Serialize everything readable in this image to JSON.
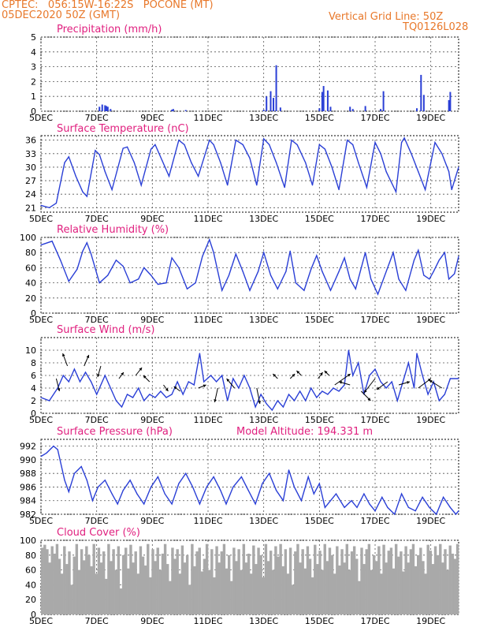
{
  "header": {
    "line1": "CPTEC:   056:15W-16:22S   POCONE (MT)",
    "line2": "05DEC2020 50Z (GMT)",
    "grid_note": "Vertical Grid Line: 50Z",
    "code": "TQ0126L028"
  },
  "colors": {
    "header": "#e8782a",
    "title": "#e0207f",
    "series": "#2a3fd6",
    "cloud": "#a9a9a9",
    "wind_vector": "#000000"
  },
  "x_ticks": [
    "5DEC",
    "7DEC",
    "9DEC",
    "11DEC",
    "13DEC",
    "15DEC",
    "17DEC",
    "19DEC"
  ],
  "chart_data": [
    {
      "id": "precip",
      "type": "bar",
      "title": "Precipitation (mm/h)",
      "ylim": [
        0,
        5
      ],
      "yticks": [
        "0",
        "1",
        "2",
        "3",
        "4",
        "5"
      ],
      "x_unit": "days since 5DEC 00Z",
      "xlim": [
        0,
        15
      ],
      "bars": [
        [
          2.1,
          0.3
        ],
        [
          2.2,
          0.45
        ],
        [
          2.3,
          0.4
        ],
        [
          2.35,
          0.35
        ],
        [
          2.4,
          0.3
        ],
        [
          2.5,
          0.15
        ],
        [
          4.7,
          0.1
        ],
        [
          4.75,
          0.15
        ],
        [
          5.2,
          0.08
        ],
        [
          8.0,
          0.1
        ],
        [
          8.1,
          1.0
        ],
        [
          8.25,
          1.35
        ],
        [
          8.35,
          0.9
        ],
        [
          8.45,
          3.1
        ],
        [
          8.6,
          0.25
        ],
        [
          10.0,
          0.2
        ],
        [
          10.1,
          1.3
        ],
        [
          10.15,
          1.7
        ],
        [
          10.3,
          1.4
        ],
        [
          10.4,
          0.3
        ],
        [
          11.1,
          0.3
        ],
        [
          11.2,
          0.15
        ],
        [
          11.65,
          0.35
        ],
        [
          12.2,
          0.15
        ],
        [
          12.3,
          1.35
        ],
        [
          13.5,
          0.2
        ],
        [
          13.65,
          2.45
        ],
        [
          13.75,
          1.1
        ],
        [
          14.65,
          0.75
        ],
        [
          14.7,
          1.3
        ]
      ]
    },
    {
      "id": "temp",
      "type": "line",
      "title": "Surface Temperature (nC)",
      "ylim": [
        20,
        37
      ],
      "yticks": [
        "21",
        "24",
        "27",
        "30",
        "33",
        "36"
      ],
      "x_unit": "days since 5DEC 00Z",
      "xlim": [
        0,
        15
      ],
      "points": [
        [
          0,
          21.5
        ],
        [
          0.3,
          21
        ],
        [
          0.55,
          22
        ],
        [
          0.85,
          31
        ],
        [
          1.0,
          32.3
        ],
        [
          1.25,
          28
        ],
        [
          1.5,
          24.5
        ],
        [
          1.65,
          23.5
        ],
        [
          1.95,
          33.7
        ],
        [
          2.1,
          32.8
        ],
        [
          2.3,
          29
        ],
        [
          2.55,
          25
        ],
        [
          2.95,
          34.2
        ],
        [
          3.1,
          34.5
        ],
        [
          3.35,
          31
        ],
        [
          3.6,
          26
        ],
        [
          3.95,
          34
        ],
        [
          4.1,
          35
        ],
        [
          4.35,
          31.5
        ],
        [
          4.6,
          28
        ],
        [
          4.95,
          36
        ],
        [
          5.15,
          35
        ],
        [
          5.4,
          31
        ],
        [
          5.65,
          28
        ],
        [
          6.05,
          36
        ],
        [
          6.2,
          35
        ],
        [
          6.45,
          31
        ],
        [
          6.7,
          26
        ],
        [
          7.0,
          36
        ],
        [
          7.25,
          35
        ],
        [
          7.5,
          32
        ],
        [
          7.75,
          26
        ],
        [
          8.0,
          36.3
        ],
        [
          8.2,
          35
        ],
        [
          8.45,
          31
        ],
        [
          8.75,
          25.5
        ],
        [
          9.0,
          36
        ],
        [
          9.2,
          35
        ],
        [
          9.5,
          31
        ],
        [
          9.75,
          26
        ],
        [
          10.0,
          35
        ],
        [
          10.2,
          34
        ],
        [
          10.45,
          30
        ],
        [
          10.7,
          25
        ],
        [
          11.0,
          36
        ],
        [
          11.2,
          35
        ],
        [
          11.4,
          31
        ],
        [
          11.7,
          25.5
        ],
        [
          12.0,
          35.5
        ],
        [
          12.2,
          33
        ],
        [
          12.4,
          29
        ],
        [
          12.75,
          24.5
        ],
        [
          12.95,
          35.5
        ],
        [
          13.05,
          36.5
        ],
        [
          13.3,
          33
        ],
        [
          13.55,
          29
        ],
        [
          13.8,
          25
        ],
        [
          14.0,
          31
        ],
        [
          14.15,
          35.5
        ],
        [
          14.4,
          33
        ],
        [
          14.65,
          29
        ],
        [
          14.75,
          25
        ],
        [
          15.0,
          30
        ]
      ]
    },
    {
      "id": "rh",
      "type": "line",
      "title": "Relative Humidity (%)",
      "ylim": [
        0,
        100
      ],
      "yticks": [
        "0",
        "20",
        "40",
        "60",
        "80",
        "100"
      ],
      "x_unit": "days since 5DEC 00Z",
      "xlim": [
        0,
        15
      ],
      "points": [
        [
          0,
          90
        ],
        [
          0.4,
          95
        ],
        [
          0.7,
          70
        ],
        [
          1.0,
          42
        ],
        [
          1.3,
          58
        ],
        [
          1.5,
          82
        ],
        [
          1.65,
          93
        ],
        [
          1.8,
          78
        ],
        [
          2.1,
          40
        ],
        [
          2.4,
          50
        ],
        [
          2.7,
          70
        ],
        [
          2.95,
          62
        ],
        [
          3.2,
          40
        ],
        [
          3.5,
          45
        ],
        [
          3.7,
          60
        ],
        [
          3.95,
          50
        ],
        [
          4.2,
          38
        ],
        [
          4.5,
          40
        ],
        [
          4.7,
          73
        ],
        [
          4.95,
          60
        ],
        [
          5.25,
          32
        ],
        [
          5.55,
          40
        ],
        [
          5.8,
          75
        ],
        [
          6.05,
          97
        ],
        [
          6.2,
          80
        ],
        [
          6.5,
          30
        ],
        [
          6.75,
          50
        ],
        [
          7.0,
          78
        ],
        [
          7.25,
          55
        ],
        [
          7.5,
          30
        ],
        [
          7.8,
          55
        ],
        [
          8.0,
          80
        ],
        [
          8.25,
          50
        ],
        [
          8.5,
          32
        ],
        [
          8.8,
          55
        ],
        [
          8.95,
          82
        ],
        [
          9.15,
          40
        ],
        [
          9.45,
          30
        ],
        [
          9.7,
          58
        ],
        [
          9.9,
          76
        ],
        [
          10.1,
          55
        ],
        [
          10.4,
          30
        ],
        [
          10.7,
          55
        ],
        [
          10.9,
          73
        ],
        [
          11.1,
          45
        ],
        [
          11.3,
          32
        ],
        [
          11.65,
          80
        ],
        [
          11.85,
          45
        ],
        [
          12.1,
          25
        ],
        [
          12.45,
          60
        ],
        [
          12.65,
          80
        ],
        [
          12.85,
          45
        ],
        [
          13.1,
          30
        ],
        [
          13.4,
          70
        ],
        [
          13.55,
          83
        ],
        [
          13.75,
          50
        ],
        [
          13.95,
          45
        ],
        [
          14.1,
          55
        ],
        [
          14.3,
          70
        ],
        [
          14.5,
          80
        ],
        [
          14.65,
          45
        ],
        [
          14.85,
          52
        ],
        [
          15.0,
          75
        ]
      ]
    },
    {
      "id": "wind",
      "type": "line",
      "title": "Surface Wind (m/s)",
      "ylim": [
        0,
        12
      ],
      "yticks": [
        "0",
        "2",
        "4",
        "6",
        "8",
        "10"
      ],
      "x_unit": "days since 5DEC 00Z",
      "xlim": [
        0,
        15
      ],
      "points": [
        [
          0,
          2.5
        ],
        [
          0.3,
          2
        ],
        [
          0.6,
          4
        ],
        [
          0.8,
          6
        ],
        [
          1.0,
          5
        ],
        [
          1.2,
          7
        ],
        [
          1.4,
          5
        ],
        [
          1.6,
          6.5
        ],
        [
          1.8,
          5
        ],
        [
          2.0,
          3
        ],
        [
          2.3,
          6
        ],
        [
          2.5,
          4
        ],
        [
          2.7,
          2
        ],
        [
          2.9,
          1
        ],
        [
          3.1,
          3
        ],
        [
          3.3,
          2.5
        ],
        [
          3.5,
          4
        ],
        [
          3.7,
          2
        ],
        [
          3.9,
          3
        ],
        [
          4.1,
          2.5
        ],
        [
          4.3,
          3.5
        ],
        [
          4.5,
          2.5
        ],
        [
          4.7,
          3
        ],
        [
          4.9,
          5
        ],
        [
          5.1,
          3
        ],
        [
          5.3,
          5
        ],
        [
          5.5,
          4.5
        ],
        [
          5.7,
          9.5
        ],
        [
          5.85,
          5
        ],
        [
          6.1,
          6
        ],
        [
          6.3,
          5
        ],
        [
          6.5,
          6
        ],
        [
          6.7,
          2
        ],
        [
          6.9,
          5.5
        ],
        [
          7.1,
          4
        ],
        [
          7.3,
          6
        ],
        [
          7.5,
          4
        ],
        [
          7.7,
          1
        ],
        [
          7.9,
          3
        ],
        [
          8.1,
          1.5
        ],
        [
          8.3,
          0.5
        ],
        [
          8.5,
          2
        ],
        [
          8.7,
          1
        ],
        [
          8.9,
          3
        ],
        [
          9.1,
          2
        ],
        [
          9.3,
          3.5
        ],
        [
          9.5,
          2
        ],
        [
          9.7,
          4
        ],
        [
          9.9,
          2.5
        ],
        [
          10.1,
          3.5
        ],
        [
          10.3,
          3
        ],
        [
          10.5,
          4
        ],
        [
          10.7,
          3.5
        ],
        [
          10.9,
          4.5
        ],
        [
          11.05,
          10
        ],
        [
          11.2,
          6
        ],
        [
          11.4,
          8
        ],
        [
          11.6,
          3
        ],
        [
          11.8,
          6
        ],
        [
          12.0,
          7
        ],
        [
          12.2,
          5
        ],
        [
          12.4,
          4
        ],
        [
          12.6,
          5
        ],
        [
          12.8,
          2
        ],
        [
          13.0,
          5
        ],
        [
          13.2,
          8
        ],
        [
          13.4,
          4
        ],
        [
          13.5,
          9.5
        ],
        [
          13.7,
          6
        ],
        [
          13.9,
          3
        ],
        [
          14.1,
          5
        ],
        [
          14.3,
          2
        ],
        [
          14.5,
          3
        ],
        [
          14.7,
          5.5
        ],
        [
          15.0,
          5.5
        ]
      ]
    },
    {
      "id": "pressure",
      "type": "line",
      "title": "Surface Pressure (hPa)",
      "annotation": "Model Altitude: 194.331 m",
      "ylim": [
        982,
        993
      ],
      "yticks": [
        "982",
        "984",
        "986",
        "988",
        "990",
        "992"
      ],
      "x_unit": "days since 5DEC 00Z",
      "xlim": [
        0,
        15
      ],
      "points": [
        [
          0,
          990.5
        ],
        [
          0.2,
          991
        ],
        [
          0.45,
          992
        ],
        [
          0.6,
          991.5
        ],
        [
          0.85,
          987
        ],
        [
          1.0,
          985.3
        ],
        [
          1.2,
          988
        ],
        [
          1.45,
          989
        ],
        [
          1.65,
          987
        ],
        [
          1.85,
          984
        ],
        [
          2.05,
          986
        ],
        [
          2.3,
          987
        ],
        [
          2.55,
          985
        ],
        [
          2.75,
          983.5
        ],
        [
          2.95,
          985.5
        ],
        [
          3.2,
          987
        ],
        [
          3.45,
          985
        ],
        [
          3.7,
          983.5
        ],
        [
          3.95,
          986
        ],
        [
          4.2,
          987.5
        ],
        [
          4.45,
          985
        ],
        [
          4.7,
          983.5
        ],
        [
          4.95,
          986.5
        ],
        [
          5.2,
          988
        ],
        [
          5.45,
          986
        ],
        [
          5.7,
          983.5
        ],
        [
          5.95,
          986
        ],
        [
          6.2,
          987.5
        ],
        [
          6.45,
          985.5
        ],
        [
          6.65,
          983.5
        ],
        [
          6.9,
          986
        ],
        [
          7.2,
          987.5
        ],
        [
          7.45,
          985.5
        ],
        [
          7.7,
          983.5
        ],
        [
          7.95,
          986.5
        ],
        [
          8.2,
          988
        ],
        [
          8.45,
          985.5
        ],
        [
          8.7,
          984
        ],
        [
          8.9,
          988.5
        ],
        [
          9.1,
          986
        ],
        [
          9.35,
          984
        ],
        [
          9.6,
          987.5
        ],
        [
          9.8,
          985
        ],
        [
          10.0,
          986.5
        ],
        [
          10.2,
          983
        ],
        [
          10.4,
          984
        ],
        [
          10.6,
          985
        ],
        [
          10.9,
          983
        ],
        [
          11.15,
          984
        ],
        [
          11.35,
          983
        ],
        [
          11.6,
          985
        ],
        [
          11.8,
          983.5
        ],
        [
          12.0,
          982.5
        ],
        [
          12.25,
          984.5
        ],
        [
          12.45,
          983
        ],
        [
          12.7,
          982
        ],
        [
          12.95,
          985
        ],
        [
          13.2,
          983
        ],
        [
          13.45,
          982.5
        ],
        [
          13.7,
          984.5
        ],
        [
          13.95,
          983
        ],
        [
          14.2,
          982
        ],
        [
          14.45,
          984.5
        ],
        [
          14.7,
          983
        ],
        [
          14.9,
          982
        ],
        [
          15.0,
          982.5
        ]
      ]
    },
    {
      "id": "cloud",
      "type": "bar",
      "title": "Cloud Cover (%)",
      "ylim": [
        0,
        100
      ],
      "yticks": [
        "0",
        "20",
        "40",
        "60",
        "80",
        "100"
      ],
      "x_unit": "days since 5DEC 00Z",
      "xlim": [
        0,
        15
      ],
      "values": [
        90,
        94,
        88,
        70,
        92,
        82,
        95,
        75,
        55,
        92,
        68,
        85,
        40,
        78,
        95,
        60,
        88,
        73,
        92,
        80,
        65,
        95,
        55,
        90,
        70,
        85,
        48,
        95,
        72,
        88,
        60,
        92,
        35,
        80,
        90,
        62,
        94,
        70,
        85,
        55,
        92,
        78,
        66,
        95,
        50,
        88,
        72,
        90,
        60,
        82,
        95,
        68,
        45,
        90,
        75,
        88,
        55,
        93,
        70,
        80,
        40,
        95,
        65,
        85,
        90,
        58,
        75,
        95,
        60,
        88,
        50,
        92,
        70,
        85,
        95,
        62,
        80,
        45,
        90,
        72,
        88,
        60,
        95,
        70,
        82,
        55,
        93,
        68,
        90,
        80,
        50,
        95,
        72,
        86,
        60,
        92,
        78,
        95,
        65,
        88,
        55,
        90,
        40,
        85,
        95,
        70,
        88,
        62,
        92,
        75,
        50,
        94,
        68,
        86,
        60,
        95,
        72,
        90,
        80,
        55,
        92,
        66,
        88,
        70,
        95,
        60,
        85,
        92,
        75,
        45,
        90,
        68,
        88,
        95,
        60,
        80,
        72,
        92,
        55,
        94,
        70,
        86,
        90,
        62,
        95,
        78,
        85,
        58,
        92,
        70,
        88,
        95,
        65,
        80,
        90,
        72,
        55,
        94,
        86,
        68,
        92,
        80,
        95,
        70,
        88,
        60,
        93,
        82,
        75,
        95
      ]
    }
  ]
}
